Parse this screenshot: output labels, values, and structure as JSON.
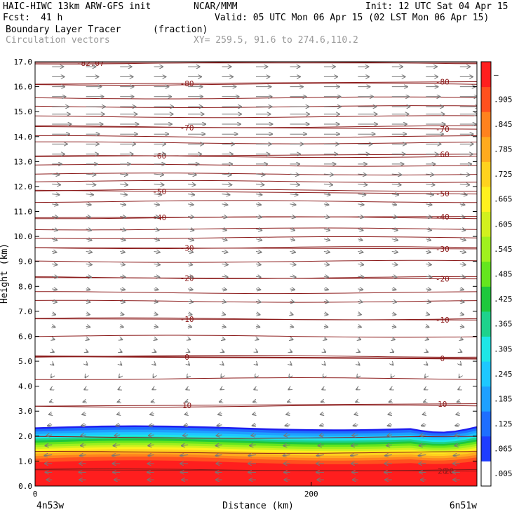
{
  "header": {
    "model_title": "HAIC-HIWC 13km ARW-GFS init",
    "org": "NCAR/MMM",
    "init": "Init: 12 UTC Sat 04 Apr 15",
    "fcst_label": "Fcst:",
    "fcst_value": "41 h",
    "valid": "Valid: 05 UTC Mon 06 Apr 15 (02 LST Mon 06 Apr 15)",
    "field_name": "Boundary Layer Tracer",
    "field_units": "(fraction)",
    "overlay_name": "Circulation vectors",
    "cross_section": "XY= 259.5, 91.6 to 274.6,110.2"
  },
  "chart_data": {
    "type": "heatmap",
    "xlabel": "Distance (km)",
    "ylabel": "Height (km)",
    "xlim": [
      0,
      320
    ],
    "ylim": [
      0.0,
      17.0
    ],
    "x_ticks": [
      {
        "value": 0,
        "label": "0"
      },
      {
        "value": 200,
        "label": "200"
      }
    ],
    "x_end_labels": {
      "left": "4n53w",
      "right": "6n51w"
    },
    "y_ticks": [
      "0.0",
      "1.0",
      "2.0",
      "3.0",
      "4.0",
      "5.0",
      "6.0",
      "7.0",
      "8.0",
      "9.0",
      "10.0",
      "11.0",
      "12.0",
      "13.0",
      "14.0",
      "15.0",
      "16.0",
      "17.0"
    ],
    "colorbar": {
      "labels": [
        ".005",
        ".065",
        ".125",
        ".185",
        ".245",
        ".305",
        ".365",
        ".425",
        ".485",
        ".545",
        ".605",
        ".665",
        ".725",
        ".785",
        ".845",
        ".905",
        "–"
      ],
      "colors": [
        "#ffffff",
        "#1e3cff",
        "#1e6eff",
        "#1ea0ff",
        "#1ec8ff",
        "#1ee6e6",
        "#1ed28c",
        "#1ec83c",
        "#64e61e",
        "#a0f01e",
        "#d2f01e",
        "#fff01e",
        "#ffd21e",
        "#ffaa1e",
        "#ff821e",
        "#ff501e",
        "#ff1e1e"
      ]
    },
    "tracer_layer": {
      "top_height_km": 2.35,
      "bands": [
        {
          "value": 0.005,
          "top": 2.35
        },
        {
          "value": 0.065,
          "top": 2.28
        },
        {
          "value": 0.125,
          "top": 2.18
        },
        {
          "value": 0.185,
          "top": 2.08
        },
        {
          "value": 0.245,
          "top": 1.98
        },
        {
          "value": 0.305,
          "top": 1.9
        },
        {
          "value": 0.365,
          "top": 1.82
        },
        {
          "value": 0.425,
          "top": 1.74
        },
        {
          "value": 0.485,
          "top": 1.65
        },
        {
          "value": 0.545,
          "top": 1.56
        },
        {
          "value": 0.605,
          "top": 1.48
        },
        {
          "value": 0.665,
          "top": 1.4
        },
        {
          "value": 0.725,
          "top": 1.3
        },
        {
          "value": 0.785,
          "top": 1.2
        },
        {
          "value": 0.845,
          "top": 1.1
        },
        {
          "value": 0.905,
          "top": 0.95
        },
        {
          "value": 1.0,
          "top": 0.8
        }
      ]
    },
    "isotherms": [
      {
        "label": "-82.07",
        "height_left": 16.95,
        "height_right": 16.95,
        "label_x": 40
      },
      {
        "label": "-80",
        "height_left": 16.1,
        "height_right": 16.2,
        "label_x": 110
      },
      {
        "label": "-70",
        "height_left": 14.4,
        "height_right": 14.3,
        "label_x": 110
      },
      {
        "label": "-60",
        "height_left": 13.2,
        "height_right": 13.3,
        "label_x": 90
      },
      {
        "label": "-50",
        "height_left": 11.85,
        "height_right": 11.7,
        "label_x": 90
      },
      {
        "label": "-40",
        "height_left": 10.75,
        "height_right": 10.8,
        "label_x": 90
      },
      {
        "label": "-30",
        "height_left": 9.55,
        "height_right": 9.5,
        "label_x": 110
      },
      {
        "label": "-20",
        "height_left": 8.35,
        "height_right": 8.3,
        "label_x": 110
      },
      {
        "label": "-10",
        "height_left": 6.7,
        "height_right": 6.65,
        "label_x": 110
      },
      {
        "label": "0",
        "height_left": 5.2,
        "height_right": 5.1,
        "label_x": 110
      },
      {
        "label": "10",
        "height_left": 3.2,
        "height_right": 3.3,
        "label_x": 110
      },
      {
        "label": "20",
        "height_left": 0.65,
        "height_right": 0.6,
        "label_x": 300
      }
    ],
    "unlabeled_contours": [
      16.95,
      16.1,
      15.55,
      15.2,
      14.8,
      14.4,
      14.0,
      13.75,
      13.2,
      12.85,
      12.5,
      12.2,
      11.85,
      11.4,
      10.75,
      10.3,
      9.95,
      9.55,
      9.0,
      8.35,
      7.75,
      7.4,
      6.7,
      6.0,
      5.2,
      4.3,
      3.2,
      1.95,
      1.35,
      0.65
    ],
    "wind_rows": [
      {
        "height": 16.8,
        "u": 0.6,
        "w": 0.0
      },
      {
        "height": 16.4,
        "u": 0.7,
        "w": 0.0
      },
      {
        "height": 16.0,
        "u": 0.8,
        "w": 0.0
      },
      {
        "height": 15.6,
        "u": 0.9,
        "w": 0.0
      },
      {
        "height": 15.2,
        "u": 1.0,
        "w": 0.0
      },
      {
        "height": 14.9,
        "u": 1.0,
        "w": 0.0
      },
      {
        "height": 14.5,
        "u": 1.0,
        "w": 0.0
      },
      {
        "height": 14.1,
        "u": 0.9,
        "w": 0.0
      },
      {
        "height": 13.7,
        "u": 0.8,
        "w": 0.0
      },
      {
        "height": 13.3,
        "u": 0.7,
        "w": 0.0
      },
      {
        "height": 12.9,
        "u": 0.6,
        "w": 0.0
      },
      {
        "height": 12.5,
        "u": 0.5,
        "w": -0.05
      },
      {
        "height": 12.1,
        "u": 0.5,
        "w": -0.05
      },
      {
        "height": 11.7,
        "u": 0.4,
        "w": -0.05
      },
      {
        "height": 11.3,
        "u": 0.3,
        "w": -0.05
      },
      {
        "height": 10.8,
        "u": 0.3,
        "w": -0.05
      },
      {
        "height": 10.3,
        "u": 0.3,
        "w": -0.08
      },
      {
        "height": 9.9,
        "u": 0.3,
        "w": -0.08
      },
      {
        "height": 9.4,
        "u": 0.3,
        "w": -0.05
      },
      {
        "height": 8.9,
        "u": 0.3,
        "w": -0.05
      },
      {
        "height": 8.4,
        "u": 0.3,
        "w": -0.05
      },
      {
        "height": 7.9,
        "u": 0.25,
        "w": -0.05
      },
      {
        "height": 7.4,
        "u": 0.25,
        "w": -0.05
      },
      {
        "height": 6.9,
        "u": 0.2,
        "w": -0.05
      },
      {
        "height": 6.4,
        "u": 0.2,
        "w": -0.05
      },
      {
        "height": 5.9,
        "u": 0.15,
        "w": -0.05
      },
      {
        "height": 5.4,
        "u": 0.1,
        "w": -0.05
      },
      {
        "height": 4.9,
        "u": 0.08,
        "w": -0.08
      },
      {
        "height": 4.4,
        "u": -0.05,
        "w": -0.08
      },
      {
        "height": 3.9,
        "u": -0.1,
        "w": -0.05
      },
      {
        "height": 3.4,
        "u": -0.15,
        "w": -0.05
      },
      {
        "height": 2.9,
        "u": -0.2,
        "w": -0.05
      },
      {
        "height": 2.45,
        "u": -0.25,
        "w": -0.05
      },
      {
        "height": 2.05,
        "u": -0.3,
        "w": -0.05
      },
      {
        "height": 1.65,
        "u": -0.35,
        "w": -0.05
      },
      {
        "height": 1.25,
        "u": -0.4,
        "w": -0.05
      },
      {
        "height": 0.9,
        "u": -0.4,
        "w": 0.0
      },
      {
        "height": 0.55,
        "u": -0.4,
        "w": 0.0
      },
      {
        "height": 0.25,
        "u": -0.35,
        "w": 0.0
      }
    ]
  }
}
